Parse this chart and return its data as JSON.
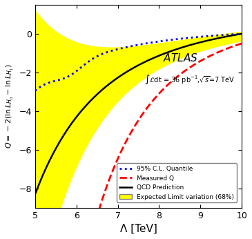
{
  "title": "",
  "xlabel": "Λ [TeV]",
  "ylabel": "Q = -2(lnL$_{H0}$ - lnL$_{H1}$)",
  "xlim": [
    5,
    10
  ],
  "ylim": [
    -9,
    1.5
  ],
  "yticks": [
    0,
    -2,
    -4,
    -6,
    -8
  ],
  "xticks": [
    5,
    6,
    7,
    8,
    9,
    10
  ],
  "atlas_label": "ATLAS",
  "lumi_label": "∫Ldt = 36 pb⁻¹,√s=7 TeV",
  "legend_entries": [
    "95% C.L. Quantile",
    "Measured Q",
    "QCD Prediction",
    "Expected Limit variation (68%)"
  ],
  "band_color": "#FFFF00",
  "band_edge_color": "#FFFF00",
  "qcd_color": "#000000",
  "quantile_color": "#0000FF",
  "measured_color": "#FF0000",
  "background_color": "#FFFFFF"
}
